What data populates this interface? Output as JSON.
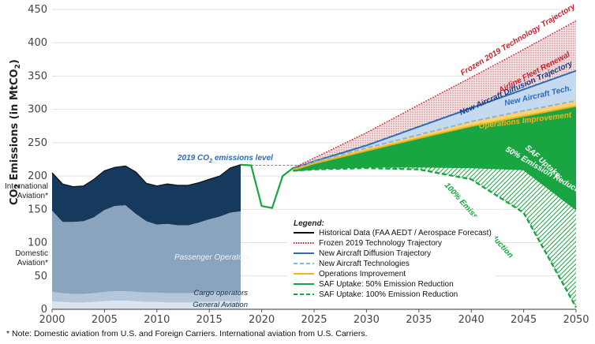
{
  "chart_data": {
    "type": "area",
    "ylabel_prefix": "CO",
    "ylabel_sub": "2",
    "ylabel_suffix": " Emissions (in MtCO",
    "ylabel_sub2": "2",
    "ylabel_close": ")",
    "xlim": [
      2000,
      2050
    ],
    "ylim": [
      0,
      450
    ],
    "xticks": [
      2000,
      2005,
      2010,
      2015,
      2020,
      2025,
      2030,
      2035,
      2040,
      2045,
      2050
    ],
    "yticks": [
      0,
      50,
      100,
      150,
      200,
      250,
      300,
      350,
      400,
      450
    ],
    "historical": {
      "years": [
        2000,
        2001,
        2002,
        2003,
        2004,
        2005,
        2006,
        2007,
        2008,
        2009,
        2010,
        2011,
        2012,
        2013,
        2014,
        2015,
        2016,
        2017,
        2018
      ],
      "general_aviation": [
        12,
        11,
        10,
        10,
        11,
        12,
        13,
        13,
        12,
        11,
        11,
        10,
        10,
        10,
        11,
        11,
        12,
        12,
        12
      ],
      "cargo_operators": [
        26,
        24,
        23,
        23,
        24,
        26,
        27,
        27,
        26,
        25,
        25,
        24,
        24,
        24,
        25,
        25,
        26,
        27,
        27
      ],
      "domestic_total": [
        148,
        131,
        131,
        132,
        138,
        149,
        155,
        156,
        143,
        132,
        127,
        128,
        126,
        126,
        130,
        135,
        139,
        145,
        147
      ],
      "total": [
        205,
        188,
        184,
        185,
        195,
        208,
        213,
        215,
        206,
        189,
        185,
        188,
        186,
        186,
        190,
        195,
        200,
        212,
        217
      ]
    },
    "covid": {
      "years": [
        2018,
        2019,
        2020,
        2021,
        2022,
        2023,
        2024
      ],
      "values": [
        217,
        216,
        155,
        152,
        200,
        212,
        215
      ]
    },
    "projection_years": [
      2023,
      2025,
      2030,
      2035,
      2040,
      2045,
      2050
    ],
    "series": [
      {
        "name": "Frozen 2019 Technology Trajectory",
        "values": [
          212,
          227,
          265,
          307,
          348,
          390,
          433
        ],
        "color": "#cc1f2d"
      },
      {
        "name": "New Aircraft Diffusion Trajectory",
        "values": [
          211,
          222,
          246,
          274,
          302,
          330,
          358
        ],
        "color": "#2c6cb5"
      },
      {
        "name": "New Aircraft Technologies",
        "values": [
          210,
          221,
          242,
          262,
          282,
          298,
          313
        ],
        "color": "#8db4d8"
      },
      {
        "name": "Operations Improvement",
        "values": [
          209,
          219,
          238,
          257,
          275,
          290,
          305
        ],
        "color": "#f2b41a"
      },
      {
        "name": "SAF Uptake: 50% Emission Reduction",
        "values": [
          208,
          211,
          214,
          214,
          213,
          210,
          150
        ],
        "color": "#1aa543"
      },
      {
        "name": "SAF Uptake: 100% Emission Reduction",
        "values": [
          208,
          210,
          212,
          210,
          195,
          145,
          3
        ],
        "color": "#1aa543"
      }
    ],
    "reference_line": {
      "label_pre": "2019 CO",
      "label_sub": "2",
      "label_post": " emissions level",
      "value": 216
    },
    "annotations": {
      "frozen": "Frozen 2019 Technology Trajectory",
      "fleet": "Airline Fleet Renewal",
      "diffusion": "New Aircraft Diffusion Trajectory",
      "newtech": "New Aircraft Tech.",
      "ops": "Operations Improvement",
      "saf50_1": "SAF Uptake:",
      "saf50_2": "50% Emission Reduction",
      "saf100_1": "SAF Uptake:",
      "saf100_2": "100% Emission Reduction"
    },
    "region_labels": {
      "international_1": "International",
      "international_2": "Aviation*",
      "domestic_1": "Domestic",
      "domestic_2": "Aviation*",
      "passenger": "Passenger Operators",
      "cargo": "Cargo operators",
      "general": "General Aviation"
    },
    "legend": {
      "title": "Legend:",
      "items": [
        {
          "label": "Historical Data (FAA AEDT / Aerospace Forecast)",
          "style": "solid",
          "color": "#111111"
        },
        {
          "label": "Frozen 2019 Technology Trajectory",
          "style": "dotted",
          "color": "#cc1f2d"
        },
        {
          "label": "New Aircraft Diffusion Trajectory",
          "style": "solid",
          "color": "#2c6cb5"
        },
        {
          "label": "New Aircraft Technologies",
          "style": "dashed",
          "color": "#8db4d8"
        },
        {
          "label": "Operations Improvement",
          "style": "solid",
          "color": "#f2b41a"
        },
        {
          "label": "SAF Uptake: 50% Emission Reduction",
          "style": "solid",
          "color": "#1aa543"
        },
        {
          "label": "SAF Uptake: 100% Emission Reduction",
          "style": "dashed",
          "color": "#1aa543"
        }
      ]
    },
    "colors": {
      "international": "#163a5e",
      "passenger": "#8ba4be",
      "cargo": "#b4c7da",
      "general": "#d8e5f1",
      "ref_line": "#3c7fbf"
    }
  },
  "note": "* Note: Domestic aviation from U.S. and Foreign Carriers. International aviation from U.S. Carriers."
}
